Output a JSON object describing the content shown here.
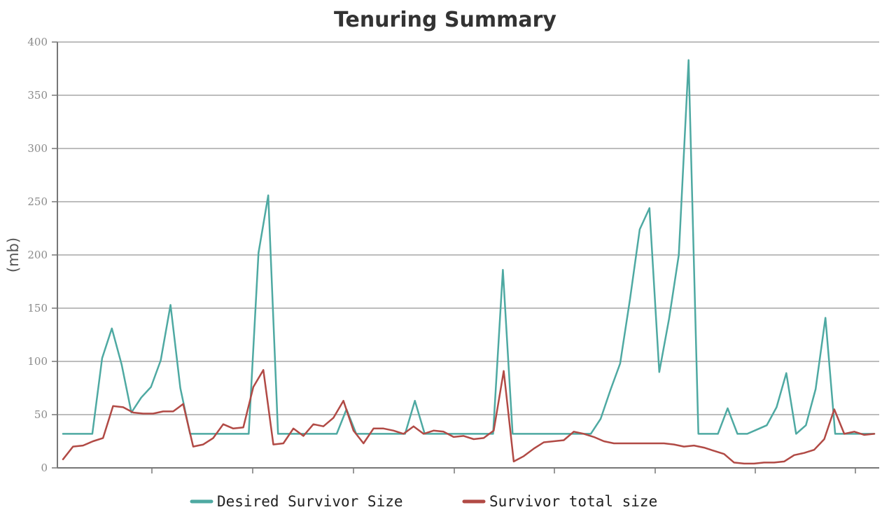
{
  "chart_data": {
    "type": "line",
    "title": "Tenuring Summary",
    "xlabel": "",
    "ylabel": "(mb)",
    "ylim": [
      0,
      400
    ],
    "y_ticks": [
      "0",
      "50",
      "100",
      "150",
      "200",
      "250",
      "300",
      "350",
      "400"
    ],
    "grid": true,
    "legend_position": "bottom",
    "series": [
      {
        "name": "Desired Survivor Size",
        "color": "#4ea9a2",
        "values": [
          32,
          32,
          32,
          32,
          103,
          131,
          97,
          52,
          66,
          76,
          101,
          153,
          75,
          32,
          32,
          32,
          32,
          32,
          32,
          32,
          202,
          256,
          32,
          32,
          32,
          32,
          32,
          32,
          32,
          55,
          32,
          32,
          32,
          32,
          32,
          32,
          63,
          32,
          32,
          32,
          32,
          32,
          32,
          32,
          32,
          186,
          32,
          32,
          32,
          32,
          32,
          32,
          32,
          32,
          32,
          46,
          73,
          98,
          158,
          224,
          244,
          90,
          140,
          200,
          383,
          32,
          32,
          32,
          56,
          32,
          32,
          36,
          40,
          57,
          89,
          32,
          40,
          74,
          141,
          32,
          32,
          32,
          32,
          32
        ]
      },
      {
        "name": "Survivor total size",
        "color": "#b14a45",
        "values": [
          8,
          20,
          21,
          25,
          28,
          58,
          57,
          52,
          51,
          51,
          53,
          53,
          60,
          20,
          22,
          28,
          41,
          37,
          38,
          76,
          92,
          22,
          23,
          37,
          30,
          41,
          39,
          47,
          63,
          35,
          23,
          37,
          37,
          35,
          32,
          39,
          32,
          35,
          34,
          29,
          30,
          27,
          28,
          35,
          91,
          6,
          11,
          18,
          24,
          25,
          26,
          34,
          32,
          29,
          25,
          23,
          23,
          23,
          23,
          23,
          23,
          22,
          20,
          21,
          19,
          16,
          13,
          5,
          4,
          4,
          5,
          5,
          6,
          12,
          14,
          17,
          27,
          55,
          32,
          34,
          31,
          32
        ]
      }
    ]
  }
}
